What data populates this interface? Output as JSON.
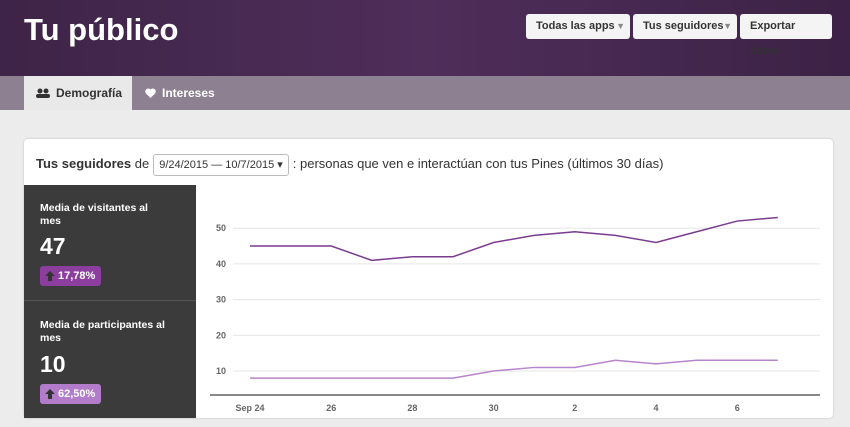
{
  "header": {
    "title": "Tu público",
    "buttons": [
      "Todas las apps",
      "Tus seguidores",
      "Exportar datos"
    ]
  },
  "tabs": [
    "Demografía",
    "Intereses"
  ],
  "card": {
    "lead": "Tus seguidores",
    "connector": "de",
    "date_range": "9/24/2015 — 10/7/2015",
    "description": ": personas que ven e interactúan con tus Pines (últimos 30 días)"
  },
  "stats": [
    {
      "label": "Media de visitantes al mes",
      "value": 47,
      "change": "17,78%",
      "color": "#8b3e9d"
    },
    {
      "label": "Media de participantes al mes",
      "value": 10,
      "change": "62,50%",
      "color": "#b27ccb"
    }
  ],
  "chart_data": {
    "type": "line",
    "categories": [
      "Sep 24",
      null,
      "26",
      null,
      "28",
      null,
      "30",
      null,
      "2",
      null,
      "4",
      null,
      "6",
      null
    ],
    "series": [
      {
        "name": "Media de visitantes al mes",
        "color": "#7b3b8e",
        "values": [
          45,
          45,
          45,
          41,
          42,
          42,
          46,
          48,
          49,
          48,
          46,
          49,
          52,
          53
        ]
      },
      {
        "name": "Media de participantes al mes",
        "color": "#b884cc",
        "values": [
          8,
          8,
          8,
          8,
          8,
          8,
          10,
          11,
          11,
          13,
          12,
          13,
          13,
          13
        ]
      }
    ],
    "ylim": [
      3,
      60
    ],
    "yticks": [
      10,
      20,
      30,
      40,
      50
    ],
    "grid": true
  }
}
